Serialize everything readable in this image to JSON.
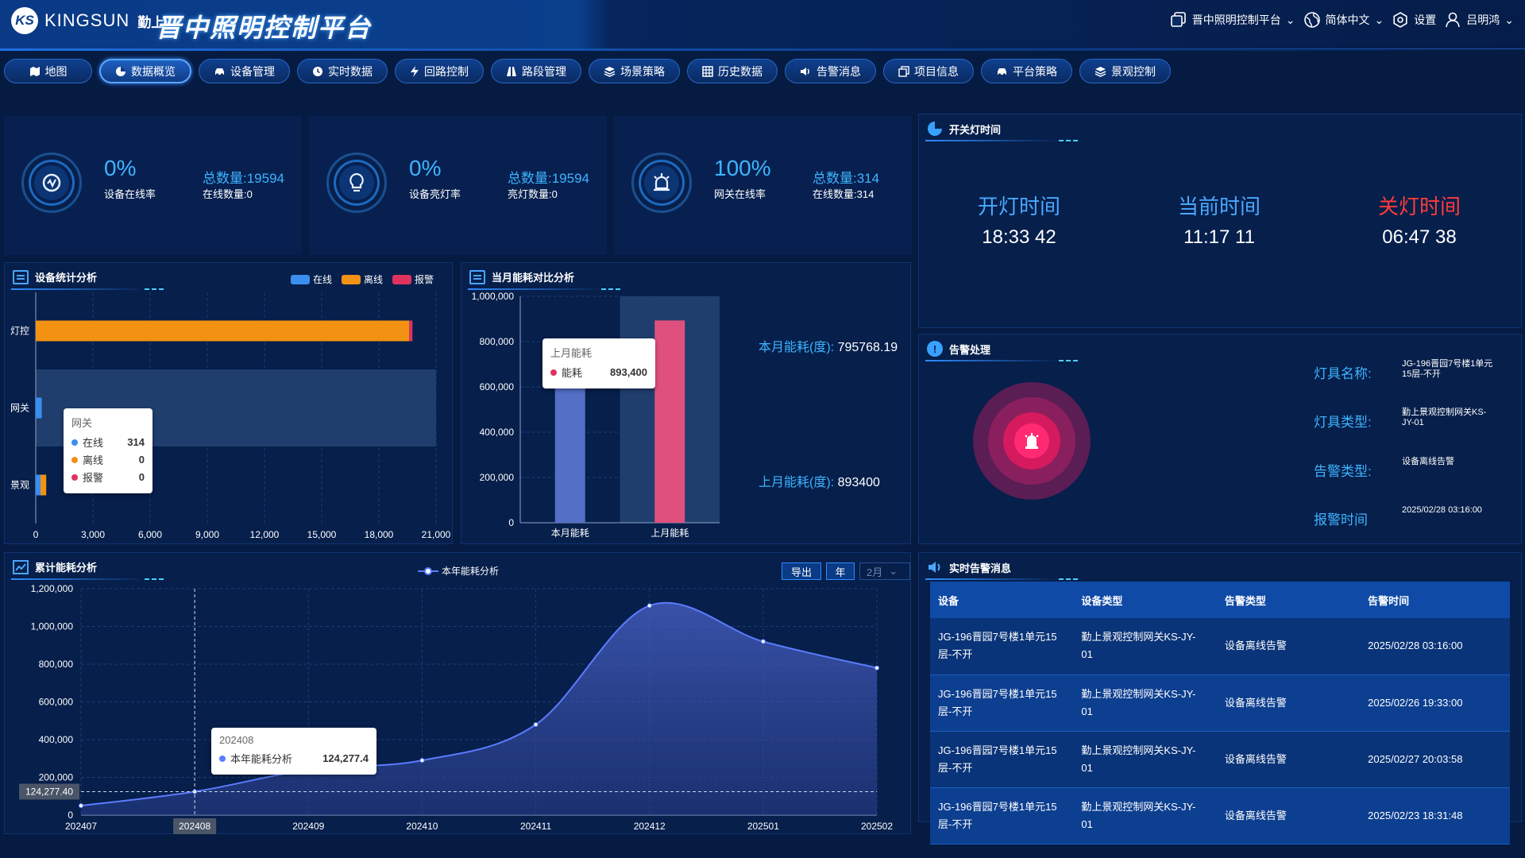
{
  "header": {
    "logo_text": "KINGSUN",
    "logo_cn": "勤上",
    "title": "晋中照明控制平台",
    "platform_select": "晋中照明控制平台",
    "language": "简体中文",
    "settings": "设置",
    "user": "吕明鸿"
  },
  "nav": [
    {
      "label": "地图",
      "icon": "map-icon"
    },
    {
      "label": "数据概览",
      "icon": "pie-icon"
    },
    {
      "label": "设备管理",
      "icon": "car-icon"
    },
    {
      "label": "实时数据",
      "icon": "clock-icon"
    },
    {
      "label": "回路控制",
      "icon": "bolt-icon"
    },
    {
      "label": "路段管理",
      "icon": "road-icon"
    },
    {
      "label": "场景策略",
      "icon": "layers-icon"
    },
    {
      "label": "历史数据",
      "icon": "table-icon"
    },
    {
      "label": "告警消息",
      "icon": "speaker-icon"
    },
    {
      "label": "项目信息",
      "icon": "copy-icon"
    },
    {
      "label": "平台策略",
      "icon": "car-icon"
    },
    {
      "label": "景观控制",
      "icon": "layers-icon"
    }
  ],
  "nav_active": "数据概览",
  "stats": [
    {
      "pct": "0%",
      "pct_label": "设备在线率",
      "total": "总数量:19594",
      "sub": "在线数量:0",
      "icon": "power-icon"
    },
    {
      "pct": "0%",
      "pct_label": "设备亮灯率",
      "total": "总数量:19594",
      "sub": "亮灯数量:0",
      "icon": "bulb-icon"
    },
    {
      "pct": "100%",
      "pct_label": "网关在线率",
      "total": "总数量:314",
      "sub": "在线数量:314",
      "icon": "alarm-lamp-icon"
    }
  ],
  "switch_time": {
    "title": "开关灯时间",
    "on_label": "开灯时间",
    "on_value": "18:33 42",
    "now_label": "当前时间",
    "now_value": "11:17 11",
    "off_label": "关灯时间",
    "off_value": "06:47 38",
    "colors": {
      "on": "#4aa8ff",
      "now": "#4aa8ff",
      "off": "#ff3b3b"
    }
  },
  "device_stats": {
    "title": "设备统计分析",
    "legend": [
      "在线",
      "离线",
      "报警"
    ],
    "colors": [
      "#3a8ef0",
      "#f39212",
      "#e0325f"
    ],
    "tooltip": {
      "title": "网关",
      "rows": [
        {
          "label": "在线",
          "value": "314"
        },
        {
          "label": "离线",
          "value": "0"
        },
        {
          "label": "报警",
          "value": "0"
        }
      ]
    }
  },
  "energy_compare": {
    "title": "当月能耗对比分析",
    "this_month_label": "本月能耗(度):",
    "this_month_value": "795768.19",
    "last_month_label": "上月能耗(度):",
    "last_month_value": "893400",
    "tooltip": {
      "title": "上月能耗",
      "label": "能耗",
      "value": "893,400"
    }
  },
  "alarm": {
    "title": "告警处理",
    "fields": [
      {
        "label": "灯具名称:",
        "value": "JG-196晋园7号楼1单元15层-不开"
      },
      {
        "label": "灯具类型:",
        "value": "勤上景观控制网关KS-JY-01"
      },
      {
        "label": "告警类型:",
        "value": "设备离线告警"
      },
      {
        "label": "报警时间",
        "value": "2025/02/28 03:16:00"
      }
    ]
  },
  "cumulative": {
    "title": "累计能耗分析",
    "legend": "本年能耗分析",
    "export_label": "导出",
    "year_label": "年",
    "month_select": "2月",
    "tooltip": {
      "title": "202408",
      "label": "本年能耗分析",
      "value": "124,277.4"
    },
    "axis_pointer": "124,277.40"
  },
  "realtime": {
    "title": "实时告警消息",
    "headers": [
      "设备",
      "设备类型",
      "告警类型",
      "告警时间"
    ],
    "rows": [
      [
        "JG-196晋园7号楼1单元15层-不开",
        "勤上景观控制网关KS-JY-01",
        "设备离线告警",
        "2025/02/28 03:16:00"
      ],
      [
        "JG-196晋园7号楼1单元15层-不开",
        "勤上景观控制网关KS-JY-01",
        "设备离线告警",
        "2025/02/26 19:33:00"
      ],
      [
        "JG-196晋园7号楼1单元15层-不开",
        "勤上景观控制网关KS-JY-01",
        "设备离线告警",
        "2025/02/27 20:03:58"
      ],
      [
        "JG-196晋园7号楼1单元15层-不开",
        "勤上景观控制网关KS-JY-01",
        "设备离线告警",
        "2025/02/23 18:31:48"
      ]
    ]
  },
  "chart_data": [
    {
      "type": "bar",
      "orientation": "horizontal",
      "stacked": true,
      "categories": [
        "灯控",
        "网关",
        "景观"
      ],
      "series": [
        {
          "name": "在线",
          "values": [
            0,
            314,
            50
          ]
        },
        {
          "name": "离线",
          "values": [
            19594,
            0,
            300
          ]
        },
        {
          "name": "报警",
          "values": [
            0,
            0,
            0
          ]
        }
      ],
      "xlim": [
        0,
        21000
      ],
      "xticks": [
        "0",
        "3,000",
        "6,000",
        "9,000",
        "12,000",
        "15,000",
        "18,000",
        "21,000"
      ]
    },
    {
      "type": "bar",
      "categories": [
        "本月能耗",
        "上月能耗"
      ],
      "values": [
        795768.19,
        893400
      ],
      "ylim": [
        0,
        1000000
      ],
      "yticks": [
        "0",
        "200,000",
        "400,000",
        "600,000",
        "800,000",
        "1,000,000"
      ],
      "colors": [
        "#5470c6",
        "#e0507e"
      ]
    },
    {
      "type": "area",
      "x": [
        "202407",
        "202408",
        "202409",
        "202410",
        "202411",
        "202412",
        "202501",
        "202502"
      ],
      "series": [
        {
          "name": "本年能耗分析",
          "values": [
            50000,
            124277.4,
            240000,
            290000,
            480000,
            1110000,
            920000,
            780000
          ]
        }
      ],
      "ylim": [
        0,
        1200000
      ],
      "yticks": [
        "0",
        "200,000",
        "400,000",
        "600,000",
        "800,000",
        "1,000,000",
        "1,200,000"
      ],
      "color": "#5b7cff"
    }
  ]
}
